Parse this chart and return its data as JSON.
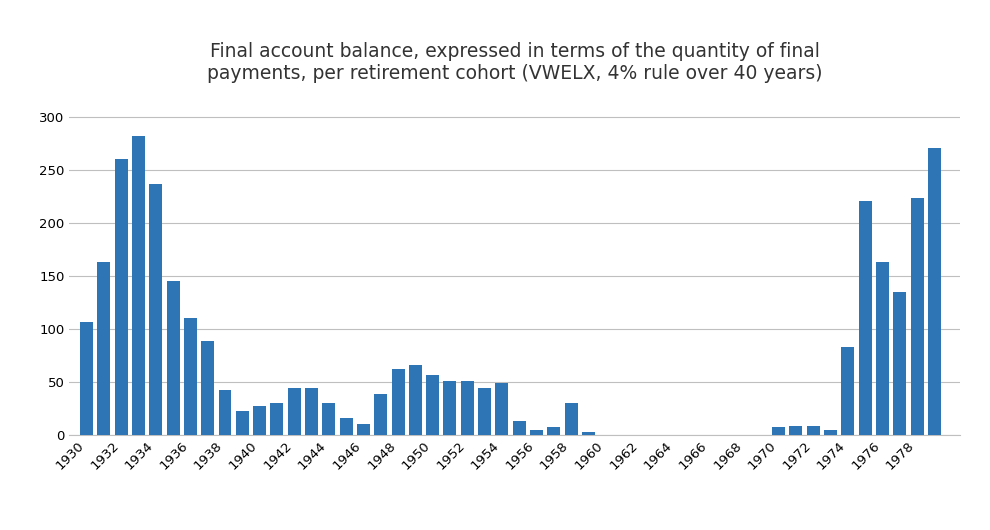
{
  "title_line1": "Final account balance, expressed in terms of the quantity of final",
  "title_line2": "payments, per retirement cohort (VWELX, 4% rule over 40 years)",
  "bar_color": "#2e75b6",
  "background_color": "#ffffff",
  "grid_color": "#bfbfbf",
  "years": [
    1930,
    1931,
    1932,
    1933,
    1934,
    1935,
    1936,
    1937,
    1938,
    1939,
    1940,
    1941,
    1942,
    1943,
    1944,
    1945,
    1946,
    1947,
    1948,
    1949,
    1950,
    1951,
    1952,
    1953,
    1954,
    1955,
    1956,
    1957,
    1958,
    1959,
    1960,
    1961,
    1962,
    1963,
    1964,
    1965,
    1966,
    1967,
    1968,
    1969,
    1970,
    1971,
    1972,
    1973,
    1974,
    1975,
    1976,
    1977,
    1978,
    1979
  ],
  "values": [
    106,
    163,
    260,
    282,
    236,
    145,
    110,
    88,
    42,
    22,
    27,
    30,
    44,
    44,
    30,
    16,
    10,
    38,
    62,
    66,
    56,
    51,
    51,
    44,
    49,
    13,
    4,
    7,
    30,
    2,
    0,
    0,
    0,
    0,
    0,
    0,
    0,
    0,
    0,
    0,
    7,
    8,
    8,
    4,
    83,
    220,
    163,
    135,
    223,
    270
  ],
  "ylim": [
    0,
    320
  ],
  "yticks": [
    0,
    50,
    100,
    150,
    200,
    250,
    300
  ],
  "xtick_years": [
    1930,
    1932,
    1934,
    1936,
    1938,
    1940,
    1942,
    1944,
    1946,
    1948,
    1950,
    1952,
    1954,
    1956,
    1958,
    1960,
    1962,
    1964,
    1966,
    1968,
    1970,
    1972,
    1974,
    1976,
    1978
  ],
  "title_fontsize": 13.5,
  "tick_fontsize": 9.5,
  "figsize": [
    9.9,
    5.3
  ],
  "dpi": 100
}
